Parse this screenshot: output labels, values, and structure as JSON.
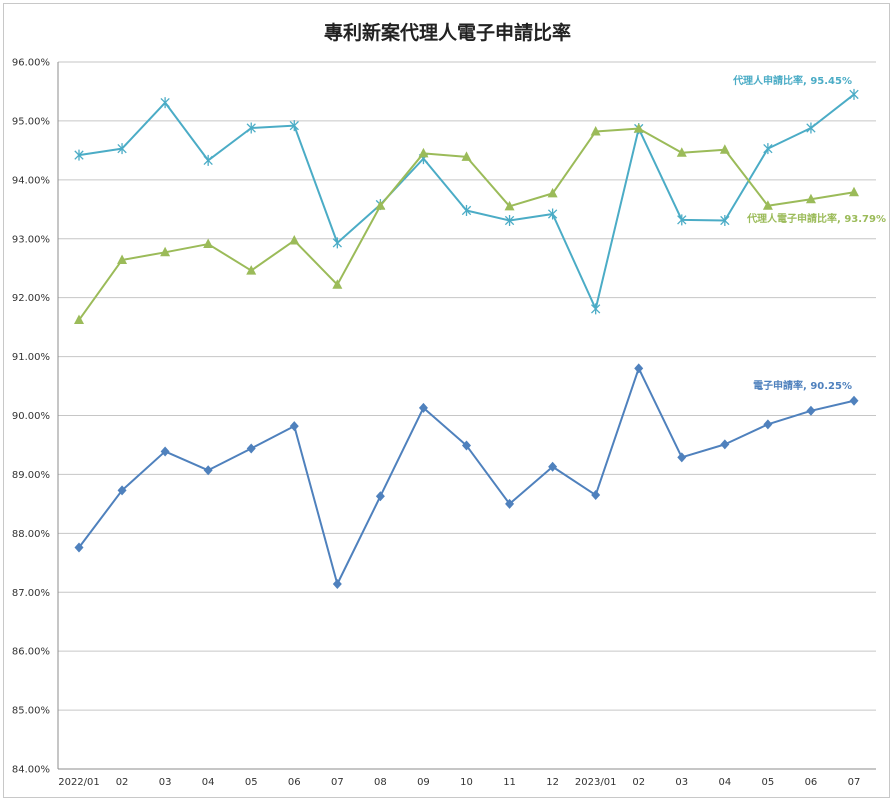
{
  "chart_data": {
    "type": "line",
    "title": "專利新案代理人電子申請比率",
    "xlabel": "",
    "ylabel": "",
    "categories": [
      "2022/01",
      "02",
      "03",
      "04",
      "05",
      "06",
      "07",
      "08",
      "09",
      "10",
      "11",
      "12",
      "2023/01",
      "02",
      "03",
      "04",
      "05",
      "06",
      "07"
    ],
    "ylim": [
      84,
      96
    ],
    "yticks": [
      "84.00%",
      "85.00%",
      "86.00%",
      "87.00%",
      "88.00%",
      "89.00%",
      "90.00%",
      "91.00%",
      "92.00%",
      "93.00%",
      "94.00%",
      "95.00%",
      "96.00%"
    ],
    "grid": true,
    "legend": "none",
    "series": [
      {
        "name": "代理人申請比率",
        "color": "#4bacc6",
        "marker": "star",
        "end_label": "代理人申請比率, 95.45%",
        "values": [
          94.42,
          94.53,
          95.31,
          94.33,
          94.88,
          94.92,
          92.93,
          93.58,
          94.36,
          93.48,
          93.31,
          93.42,
          91.81,
          94.87,
          93.32,
          93.31,
          94.53,
          94.88,
          95.45
        ]
      },
      {
        "name": "代理人電子申請比率",
        "color": "#9bbb59",
        "marker": "triangle",
        "end_label": "代理人電子申請比率, 93.79%",
        "values": [
          91.62,
          92.64,
          92.77,
          92.91,
          92.46,
          92.97,
          92.22,
          93.56,
          94.45,
          94.39,
          93.55,
          93.77,
          94.82,
          94.87,
          94.46,
          94.51,
          93.56,
          93.67,
          93.79
        ]
      },
      {
        "name": "電子申請率",
        "color": "#4f81bd",
        "marker": "diamond",
        "end_label": "電子申請率, 90.25%",
        "values": [
          87.76,
          88.73,
          89.39,
          89.07,
          89.44,
          89.82,
          87.14,
          88.63,
          90.13,
          89.49,
          88.5,
          89.13,
          88.65,
          90.8,
          89.29,
          89.51,
          89.85,
          90.08,
          90.25
        ]
      }
    ]
  }
}
